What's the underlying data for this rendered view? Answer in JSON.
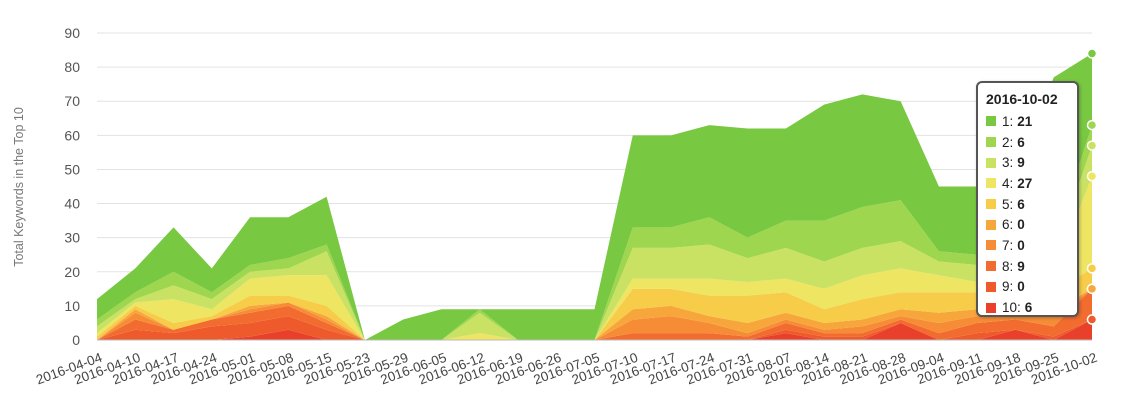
{
  "chart_data": {
    "type": "area",
    "stacked": true,
    "ylabel": "Total Keywords in the Top 10",
    "ylim": [
      0,
      90
    ],
    "yticks": [
      0,
      10,
      20,
      30,
      40,
      50,
      60,
      70,
      80,
      90
    ],
    "grid": "horizontal",
    "x": [
      "2016-04-04",
      "2016-04-10",
      "2016-04-17",
      "2016-04-24",
      "2016-05-01",
      "2016-05-08",
      "2016-05-15",
      "2016-05-23",
      "2016-05-29",
      "2016-06-05",
      "2016-06-12",
      "2016-06-19",
      "2016-06-26",
      "2016-07-05",
      "2016-07-10",
      "2016-07-17",
      "2016-07-24",
      "2016-07-31",
      "2016-08-07",
      "2016-08-14",
      "2016-08-21",
      "2016-08-28",
      "2016-09-04",
      "2016-09-11",
      "2016-09-18",
      "2016-09-25",
      "2016-10-02"
    ],
    "series": [
      {
        "name": "10",
        "color": "#e8402a",
        "values": [
          0,
          0,
          0,
          0,
          1,
          3,
          0,
          0,
          0,
          0,
          0,
          0,
          0,
          0,
          0,
          0,
          0,
          0,
          2,
          0,
          0,
          5,
          0,
          0,
          3,
          0,
          6
        ]
      },
      {
        "name": "9",
        "color": "#ee5a2c",
        "values": [
          0,
          3,
          2,
          4,
          4,
          4,
          3,
          0,
          0,
          0,
          0,
          0,
          0,
          0,
          0,
          0,
          0,
          0,
          1,
          1,
          1,
          0,
          0,
          2,
          0,
          1,
          0
        ]
      },
      {
        "name": "8",
        "color": "#f26c2f",
        "values": [
          0,
          3,
          1,
          2,
          3,
          3,
          2,
          0,
          0,
          0,
          0,
          0,
          0,
          0,
          2,
          2,
          2,
          1,
          2,
          1,
          1,
          1,
          2,
          3,
          3,
          3,
          9
        ]
      },
      {
        "name": "7",
        "color": "#f68d36",
        "values": [
          0,
          2,
          0,
          0,
          1,
          1,
          1,
          0,
          0,
          0,
          0,
          0,
          0,
          0,
          4,
          5,
          3,
          1,
          1,
          1,
          2,
          1,
          3,
          2,
          2,
          3,
          0
        ]
      },
      {
        "name": "6",
        "color": "#f7a63c",
        "values": [
          0,
          1,
          0,
          0,
          1,
          0,
          1,
          0,
          0,
          0,
          0,
          0,
          0,
          0,
          3,
          3,
          2,
          3,
          2,
          2,
          2,
          2,
          3,
          2,
          2,
          2,
          0
        ]
      },
      {
        "name": "5",
        "color": "#f7cc48",
        "values": [
          1,
          1,
          2,
          1,
          3,
          2,
          3,
          0,
          0,
          0,
          0,
          0,
          0,
          0,
          6,
          5,
          6,
          8,
          6,
          4,
          6,
          5,
          6,
          5,
          5,
          5,
          6
        ]
      },
      {
        "name": "4",
        "color": "#eee562",
        "values": [
          1,
          1,
          7,
          2,
          5,
          6,
          9,
          0,
          0,
          0,
          2,
          0,
          0,
          0,
          3,
          3,
          5,
          4,
          4,
          6,
          7,
          7,
          5,
          3,
          4,
          5,
          27
        ]
      },
      {
        "name": "3",
        "color": "#c9e264",
        "values": [
          2,
          1,
          4,
          3,
          2,
          2,
          7,
          0,
          0,
          0,
          6,
          0,
          0,
          0,
          9,
          9,
          10,
          7,
          9,
          8,
          8,
          8,
          4,
          5,
          5,
          5,
          9
        ]
      },
      {
        "name": "2",
        "color": "#9fd650",
        "values": [
          2,
          2,
          4,
          2,
          2,
          3,
          2,
          0,
          0,
          0,
          1,
          0,
          0,
          0,
          6,
          6,
          8,
          6,
          8,
          12,
          12,
          12,
          3,
          3,
          4,
          4,
          6
        ]
      },
      {
        "name": "1",
        "color": "#78c841",
        "values": [
          6,
          7,
          13,
          7,
          14,
          12,
          14,
          0,
          6,
          9,
          0,
          9,
          9,
          9,
          27,
          27,
          27,
          32,
          27,
          34,
          33,
          29,
          19,
          20,
          21,
          49,
          21
        ]
      }
    ],
    "tooltip": {
      "date": "2016-10-02",
      "rows": [
        {
          "label": "1:",
          "value": "21",
          "color": "#78c841"
        },
        {
          "label": "2:",
          "value": "6",
          "color": "#9fd650"
        },
        {
          "label": "3:",
          "value": "9",
          "color": "#c9e264"
        },
        {
          "label": "4:",
          "value": "27",
          "color": "#eee562"
        },
        {
          "label": "5:",
          "value": "6",
          "color": "#f7cc48"
        },
        {
          "label": "6:",
          "value": "0",
          "color": "#f7a63c"
        },
        {
          "label": "7:",
          "value": "0",
          "color": "#f68d36"
        },
        {
          "label": "8:",
          "value": "9",
          "color": "#f26c2f"
        },
        {
          "label": "9:",
          "value": "0",
          "color": "#ee5a2c"
        },
        {
          "label": "10:",
          "value": "6",
          "color": "#e8402a"
        }
      ]
    }
  }
}
